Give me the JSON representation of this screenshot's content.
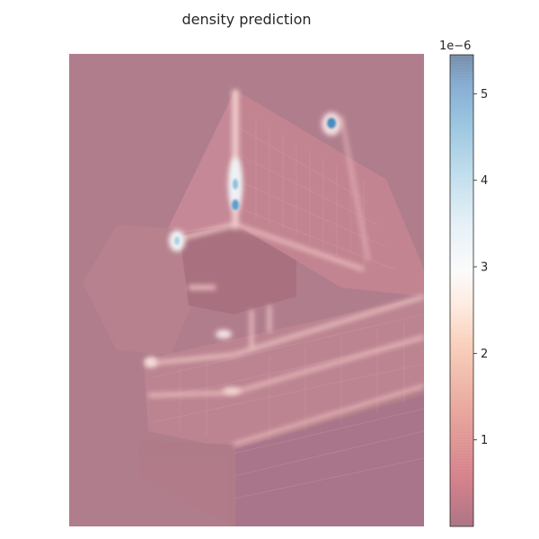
{
  "chart_data": {
    "type": "heatmap",
    "title": "density prediction",
    "xlabel": "",
    "ylabel": "",
    "grid": false,
    "colormap": "RdBu",
    "colormap_alpha": 0.5,
    "colorbar": {
      "orientation": "vertical",
      "placement": "right",
      "offset_label": "1e−6",
      "scale_exponent": -6,
      "range": [
        0.0,
        5.45
      ],
      "ticks": [
        1,
        2,
        3,
        4,
        5
      ],
      "tick_labels": [
        "1",
        "2",
        "3",
        "4",
        "5"
      ]
    },
    "background": "photo of a tall modern building with cantilevered balconies, viewed from below",
    "estimated_base_density": 0.4,
    "hotspots": [
      {
        "location": "top-right lamp",
        "value": 5.0
      },
      {
        "location": "vertical building edge, upper",
        "value": 4.0
      },
      {
        "location": "vertical building edge, lower",
        "value": 4.3
      },
      {
        "location": "left balcony light",
        "value": 3.3
      },
      {
        "location": "center-left small light",
        "value": 2.6
      },
      {
        "location": "lower-left balcony light",
        "value": 2.3
      }
    ]
  },
  "palette": {
    "figure_background": "#ffffff",
    "text_color": "#262626",
    "low_color": "#67001f",
    "mid_color": "#f7f7f7",
    "high_color": "#053061"
  }
}
